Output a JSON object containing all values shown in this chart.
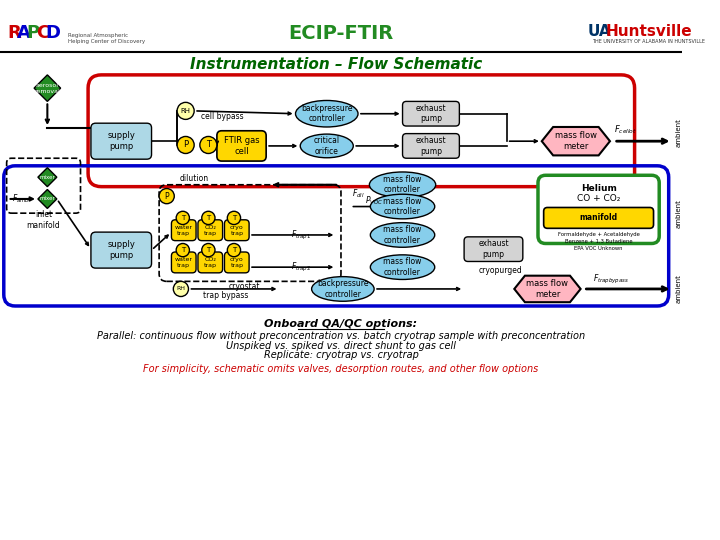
{
  "title": "ECIP-FTIR",
  "subtitle": "Instrumentation – Flow Schematic",
  "bg_color": "#ffffff",
  "colors": {
    "red_box": "#cc0000",
    "blue_box": "#0000cc",
    "green_diamond": "#228B22",
    "supply_pump": "#add8e6",
    "backpressure": "#87ceeb",
    "exhaust_pump": "#d3d3d3",
    "mass_flow_meter": "#ffb6c1",
    "critical_orifice": "#87ceeb",
    "ftir_cell": "#ffd700",
    "mass_flow_ctrl": "#87ceeb",
    "trap": "#ffd700",
    "manifold_box": "#ffd700",
    "p_circle": "#ffd700",
    "t_circle": "#ffd700",
    "rh_circle": "#ffffaa",
    "green_title": "#006400",
    "red_note": "#cc0000"
  },
  "bottom_text": [
    "Onboard QA/QC options:",
    "Parallel: continuous flow without preconcentration vs. batch cryotrap sample with preconcentration",
    "Unspiked vs. spiked vs. direct shunt to gas cell",
    "Replicate: cryotrap vs. cryotrap"
  ],
  "note_text": "For simplicity, schematic omits valves, desorption routes, and other flow options"
}
